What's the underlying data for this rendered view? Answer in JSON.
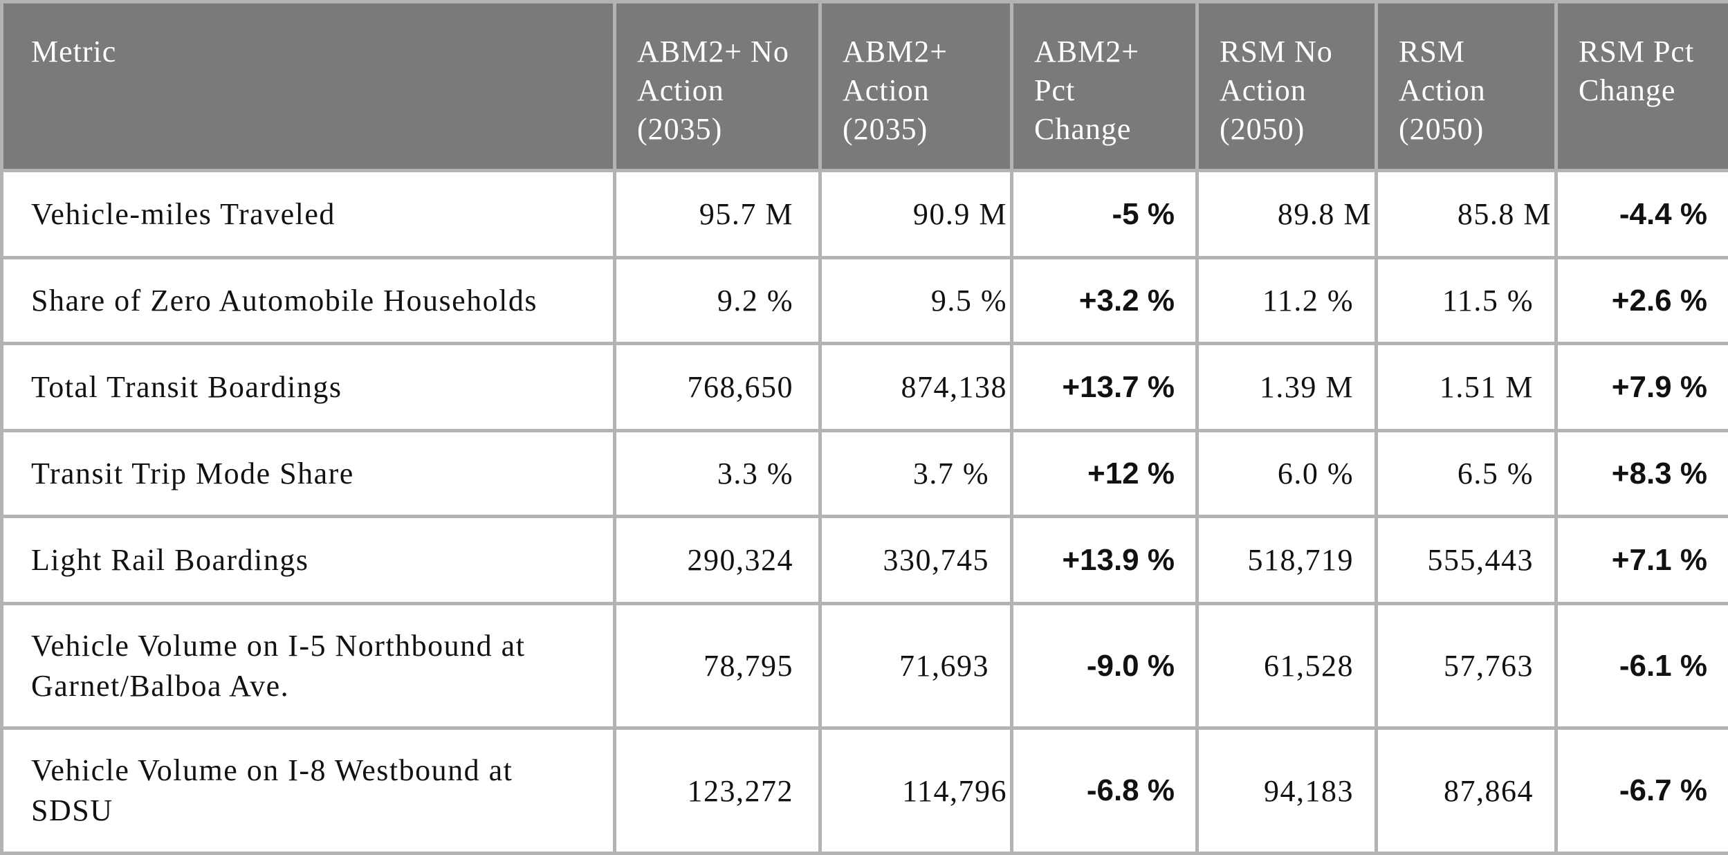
{
  "table": {
    "headers": [
      "Metric",
      "ABM2+ No Action (2035)",
      "ABM2+ Action (2035)",
      "ABM2+ Pct Change",
      "RSM No Action (2050)",
      "RSM Action (2050)",
      "RSM Pct Change"
    ],
    "rows": [
      {
        "metric": "Vehicle-miles Traveled",
        "abm_no_action": "95.7 M",
        "abm_action": "90.9 M",
        "abm_pct": "-5 %",
        "rsm_no_action": "89.8 M",
        "rsm_action": "85.8 M",
        "rsm_pct": "-4.4 %"
      },
      {
        "metric": "Share of Zero Automobile Households",
        "abm_no_action": "9.2 %",
        "abm_action": "9.5 %",
        "abm_pct": "+3.2 %",
        "rsm_no_action": "11.2 %",
        "rsm_action": "11.5 %",
        "rsm_pct": "+2.6 %"
      },
      {
        "metric": "Total Transit Boardings",
        "abm_no_action": "768,650",
        "abm_action": "874,138",
        "abm_pct": "+13.7 %",
        "rsm_no_action": "1.39 M",
        "rsm_action": "1.51 M",
        "rsm_pct": "+7.9 %"
      },
      {
        "metric": "Transit Trip Mode Share",
        "abm_no_action": "3.3 %",
        "abm_action": "3.7 %",
        "abm_pct": "+12 %",
        "rsm_no_action": "6.0 %",
        "rsm_action": "6.5 %",
        "rsm_pct": "+8.3 %"
      },
      {
        "metric": "Light Rail Boardings",
        "abm_no_action": "290,324",
        "abm_action": "330,745",
        "abm_pct": "+13.9 %",
        "rsm_no_action": "518,719",
        "rsm_action": "555,443",
        "rsm_pct": "+7.1 %"
      },
      {
        "metric": "Vehicle Volume on I-5 Northbound at Garnet/Balboa Ave.",
        "abm_no_action": "78,795",
        "abm_action": "71,693",
        "abm_pct": "-9.0 %",
        "rsm_no_action": "61,528",
        "rsm_action": "57,763",
        "rsm_pct": "-6.1 %"
      },
      {
        "metric": "Vehicle Volume on I-8 Westbound at SDSU",
        "abm_no_action": "123,272",
        "abm_action": "114,796",
        "abm_pct": "-6.8 %",
        "rsm_no_action": "94,183",
        "rsm_action": "87,864",
        "rsm_pct": "-6.7 %"
      }
    ]
  },
  "colors": {
    "header_bg": "#7a7a7a",
    "header_text": "#ffffff",
    "grid": "#b3b3b3",
    "body_text": "#111111"
  }
}
